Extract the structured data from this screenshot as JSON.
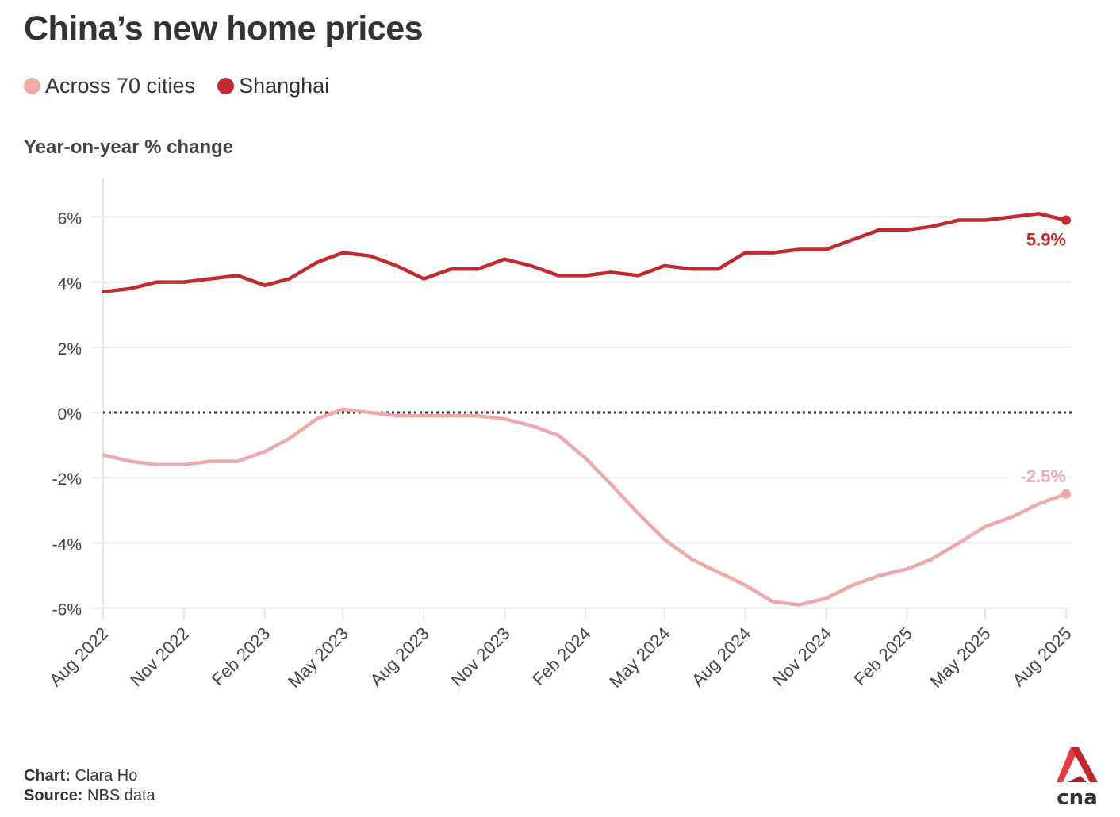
{
  "chart_data": {
    "type": "line",
    "title": "China’s new home prices",
    "ylabel": "Year-on-year % change",
    "xlabel": "",
    "ylim": [
      -6.3,
      7.0
    ],
    "yticks": [
      6,
      4,
      2,
      0,
      -2,
      -4,
      -6
    ],
    "ytick_labels": [
      "6%",
      "4%",
      "2%",
      "0%",
      "-2%",
      "-4%",
      "-6%"
    ],
    "xticks": [
      "2022-08",
      "2022-11",
      "2023-02",
      "2023-05",
      "2023-08",
      "2023-11",
      "2024-02",
      "2024-05",
      "2024-08",
      "2024-11",
      "2025-02",
      "2025-05",
      "2025-08"
    ],
    "xtick_labels": [
      "Aug 2022",
      "Nov 2022",
      "Feb 2023",
      "May 2023",
      "Aug 2023",
      "Nov 2023",
      "Feb 2024",
      "May 2024",
      "Aug 2024",
      "Nov 2024",
      "Feb 2025",
      "May 2025",
      "Aug 2025"
    ],
    "x": [
      "2022-08",
      "2022-09",
      "2022-10",
      "2022-11",
      "2022-12",
      "2023-01",
      "2023-02",
      "2023-03",
      "2023-04",
      "2023-05",
      "2023-06",
      "2023-07",
      "2023-08",
      "2023-09",
      "2023-10",
      "2023-11",
      "2023-12",
      "2024-01",
      "2024-02",
      "2024-03",
      "2024-04",
      "2024-05",
      "2024-06",
      "2024-07",
      "2024-08",
      "2024-09",
      "2024-10",
      "2024-11",
      "2024-12",
      "2025-01",
      "2025-02",
      "2025-03",
      "2025-04",
      "2025-05",
      "2025-06",
      "2025-07",
      "2025-08"
    ],
    "series": [
      {
        "name": "Across 70 cities",
        "color": "#f0a9a9",
        "values": [
          -1.3,
          -1.5,
          -1.6,
          -1.6,
          -1.5,
          -1.5,
          -1.2,
          -0.8,
          -0.2,
          0.1,
          0.0,
          -0.1,
          -0.1,
          -0.1,
          -0.1,
          -0.2,
          -0.4,
          -0.7,
          -1.4,
          -2.2,
          -3.1,
          -3.9,
          -4.5,
          -4.9,
          -5.3,
          -5.8,
          -5.9,
          -5.7,
          -5.3,
          -5.0,
          -4.8,
          -4.5,
          -4.0,
          -3.5,
          -3.2,
          -2.8,
          -2.5
        ],
        "end_label": "-2.5%"
      },
      {
        "name": "Shanghai",
        "color": "#c32a2f",
        "values": [
          3.7,
          3.8,
          4.0,
          4.0,
          4.1,
          4.2,
          3.9,
          4.1,
          4.6,
          4.9,
          4.8,
          4.5,
          4.1,
          4.4,
          4.4,
          4.7,
          4.5,
          4.2,
          4.2,
          4.3,
          4.2,
          4.5,
          4.4,
          4.4,
          4.9,
          4.9,
          5.0,
          5.0,
          5.3,
          5.6,
          5.6,
          5.7,
          5.9,
          5.9,
          6.0,
          6.1,
          5.9
        ],
        "end_label": "5.9%"
      }
    ],
    "reference_line": {
      "value": 0,
      "style": "dotted",
      "color": "#333333"
    },
    "grid": true,
    "legend_position": "top-left"
  },
  "footer": {
    "chart_label": "Chart:",
    "chart_value": "Clara Ho",
    "source_label": "Source:",
    "source_value": "NBS data"
  },
  "logo": {
    "name": "cna-logo",
    "text": "cna"
  }
}
